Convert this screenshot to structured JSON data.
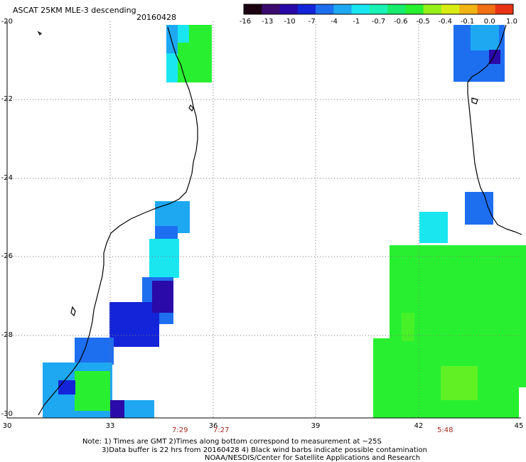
{
  "header": {
    "title": "ASCAT 25KM MLE-3 descending",
    "date": "20160428"
  },
  "colorbar": {
    "labels": [
      "-16",
      "-13",
      "-10",
      "-7",
      "-4",
      "-1",
      "-0.7",
      "-0.6",
      "-0.5",
      "-0.4",
      "-0.1",
      "0.0",
      "1.0"
    ],
    "colors": [
      "#1a0010",
      "#3a0a6e",
      "#2a0aa8",
      "#1424d8",
      "#1e6ef0",
      "#1ea8f2",
      "#1ae6f0",
      "#18f2b4",
      "#18ec6c",
      "#28f030",
      "#96f018",
      "#d8ec14",
      "#f0b414",
      "#f07014",
      "#e83414"
    ]
  },
  "axes": {
    "y_labels": [
      "-20",
      "-22",
      "-24",
      "-26",
      "-28",
      "-30"
    ],
    "x_labels": [
      "30",
      "33",
      "36",
      "39",
      "42",
      "45"
    ]
  },
  "time_labels": [
    "7:29",
    "7:27",
    "5:48"
  ],
  "notes": {
    "line1": "Note: 1) Times are GMT 2)Times along bottom correspond to measurement at ~25S",
    "line2": "3)Data buffer is 22 hrs from 20160428 4) Black wind barbs indicate possible contamination",
    "line3": "NOAA/NESDIS/Center for Satellite Applications and Research"
  }
}
